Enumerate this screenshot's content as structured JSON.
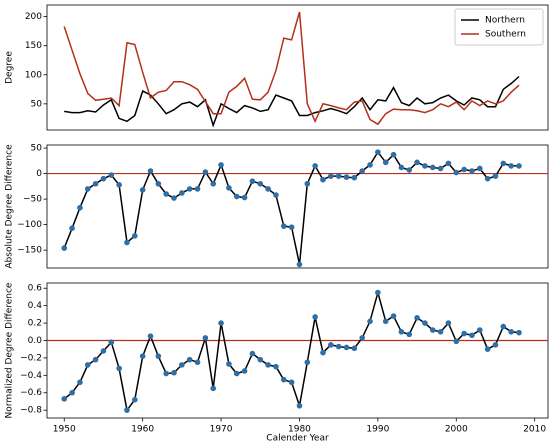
{
  "chart_data": [
    {
      "type": "line",
      "ylabel": "Degree",
      "legend": "upper right",
      "x": [
        1950,
        1951,
        1952,
        1953,
        1954,
        1955,
        1956,
        1957,
        1958,
        1959,
        1960,
        1961,
        1962,
        1963,
        1964,
        1965,
        1966,
        1967,
        1968,
        1969,
        1970,
        1971,
        1972,
        1973,
        1974,
        1975,
        1976,
        1977,
        1978,
        1979,
        1980,
        1981,
        1982,
        1983,
        1984,
        1985,
        1986,
        1987,
        1988,
        1989,
        1990,
        1991,
        1992,
        1993,
        1994,
        1995,
        1996,
        1997,
        1998,
        1999,
        2000,
        2001,
        2002,
        2003,
        2004,
        2005,
        2006,
        2007,
        2008
      ],
      "series": [
        {
          "name": "Northern",
          "color": "#000000",
          "values": [
            37,
            35,
            35,
            38,
            36,
            48,
            57,
            25,
            20,
            30,
            72,
            65,
            50,
            33,
            40,
            50,
            53,
            45,
            57,
            13,
            50,
            42,
            35,
            47,
            43,
            37,
            40,
            65,
            60,
            55,
            30,
            30,
            35,
            38,
            42,
            38,
            33,
            45,
            60,
            40,
            57,
            55,
            78,
            52,
            47,
            60,
            50,
            52,
            60,
            65,
            55,
            48,
            60,
            57,
            45,
            45,
            75,
            85,
            97
          ]
        },
        {
          "name": "Southern",
          "color": "#b5301a",
          "values": [
            183,
            142,
            102,
            68,
            56,
            58,
            60,
            47,
            155,
            152,
            104,
            60,
            70,
            73,
            88,
            88,
            83,
            75,
            54,
            33,
            33,
            70,
            80,
            94,
            58,
            57,
            70,
            107,
            163,
            160,
            208,
            50,
            20,
            50,
            47,
            43,
            40,
            53,
            55,
            23,
            15,
            33,
            41,
            40,
            40,
            38,
            35,
            40,
            50,
            45,
            53,
            40,
            55,
            47,
            55,
            50,
            55,
            70,
            82
          ]
        }
      ],
      "xlim": [
        1947.8,
        2011.7
      ],
      "ylim": [
        5,
        220
      ],
      "yticks": [
        50,
        100,
        150,
        200
      ]
    },
    {
      "type": "line",
      "ylabel": "Absolute Degree Difference",
      "hline": 0,
      "hline_color": "#b5301a",
      "marker_color": "#2f6fa8",
      "x": [
        1950,
        1951,
        1952,
        1953,
        1954,
        1955,
        1956,
        1957,
        1958,
        1959,
        1960,
        1961,
        1962,
        1963,
        1964,
        1965,
        1966,
        1967,
        1968,
        1969,
        1970,
        1971,
        1972,
        1973,
        1974,
        1975,
        1976,
        1977,
        1978,
        1979,
        1980,
        1981,
        1982,
        1983,
        1984,
        1985,
        1986,
        1987,
        1988,
        1989,
        1990,
        1991,
        1992,
        1993,
        1994,
        1995,
        1996,
        1997,
        1998,
        1999,
        2000,
        2001,
        2002,
        2003,
        2004,
        2005,
        2006,
        2007,
        2008
      ],
      "series": [
        {
          "color": "#000000",
          "values": [
            -146,
            -107,
            -67,
            -30,
            -20,
            -10,
            -3,
            -22,
            -135,
            -122,
            -32,
            5,
            -20,
            -40,
            -48,
            -38,
            -30,
            -30,
            3,
            -20,
            17,
            -28,
            -45,
            -47,
            -15,
            -20,
            -30,
            -42,
            -103,
            -105,
            -178,
            -20,
            15,
            -12,
            -5,
            -5,
            -7,
            -8,
            5,
            17,
            42,
            22,
            37,
            12,
            7,
            22,
            15,
            12,
            10,
            20,
            2,
            8,
            5,
            10,
            -10,
            -5,
            20,
            15,
            15
          ]
        }
      ],
      "xlim": [
        1947.8,
        2011.7
      ],
      "ylim": [
        -185,
        56
      ],
      "yticks": [
        {
          "value": -150,
          "label": "−150"
        },
        {
          "value": -100,
          "label": "−100"
        },
        {
          "value": -50,
          "label": "−50"
        },
        0,
        50
      ]
    },
    {
      "type": "line",
      "ylabel": "Normalized Degree Difference",
      "xlabel": "Calender Year",
      "hline": 0,
      "hline_color": "#b5301a",
      "marker_color": "#2f6fa8",
      "x": [
        1950,
        1951,
        1952,
        1953,
        1954,
        1955,
        1956,
        1957,
        1958,
        1959,
        1960,
        1961,
        1962,
        1963,
        1964,
        1965,
        1966,
        1967,
        1968,
        1969,
        1970,
        1971,
        1972,
        1973,
        1974,
        1975,
        1976,
        1977,
        1978,
        1979,
        1980,
        1981,
        1982,
        1983,
        1984,
        1985,
        1986,
        1987,
        1988,
        1989,
        1990,
        1991,
        1992,
        1993,
        1994,
        1995,
        1996,
        1997,
        1998,
        1999,
        2000,
        2001,
        2002,
        2003,
        2004,
        2005,
        2006,
        2007,
        2008
      ],
      "series": [
        {
          "color": "#000000",
          "values": [
            -0.67,
            -0.6,
            -0.48,
            -0.28,
            -0.22,
            -0.12,
            -0.02,
            -0.32,
            -0.8,
            -0.68,
            -0.18,
            0.05,
            -0.18,
            -0.38,
            -0.37,
            -0.28,
            -0.22,
            -0.25,
            0.03,
            -0.55,
            0.2,
            -0.27,
            -0.38,
            -0.35,
            -0.15,
            -0.22,
            -0.28,
            -0.3,
            -0.45,
            -0.48,
            -0.75,
            -0.25,
            0.27,
            -0.14,
            -0.05,
            -0.07,
            -0.08,
            -0.09,
            0.03,
            0.22,
            0.55,
            0.22,
            0.28,
            0.1,
            0.07,
            0.26,
            0.2,
            0.12,
            0.1,
            0.2,
            -0.01,
            0.08,
            0.06,
            0.12,
            -0.1,
            -0.05,
            0.16,
            0.1,
            0.09
          ]
        }
      ],
      "xlim": [
        1947.8,
        2011.7
      ],
      "ylim": [
        -0.89,
        0.66
      ],
      "xticks": [
        1950,
        1960,
        1970,
        1980,
        1990,
        2000,
        2010
      ],
      "yticks": [
        {
          "value": -0.8,
          "label": "−0.8"
        },
        {
          "value": -0.6,
          "label": "−0.6"
        },
        {
          "value": -0.4,
          "label": "−0.4"
        },
        {
          "value": -0.2,
          "label": "−0.2"
        },
        {
          "value": 0,
          "label": "0.0"
        },
        0.2,
        0.4,
        0.6
      ]
    }
  ]
}
